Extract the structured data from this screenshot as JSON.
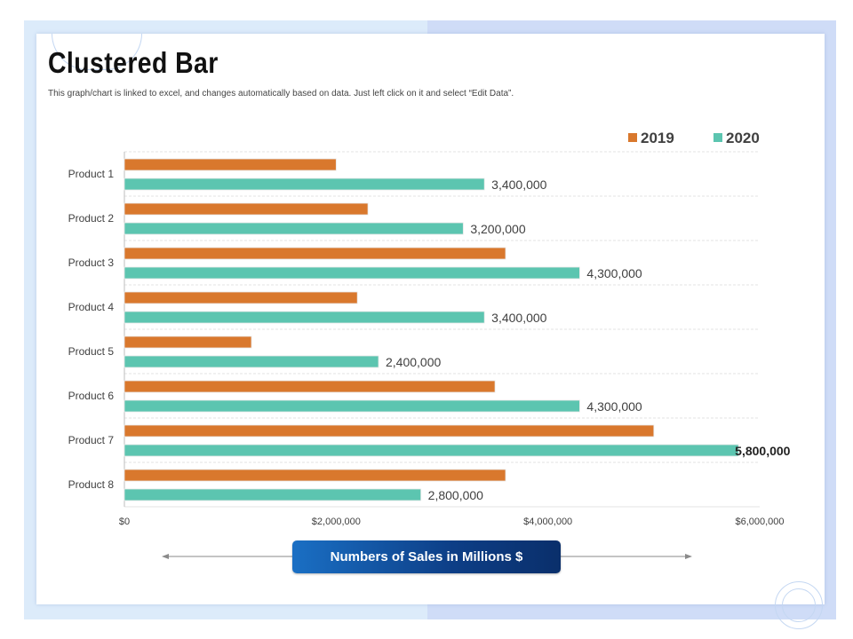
{
  "page": {
    "title": "Clustered Bar",
    "subtitle": "This graph/chart is linked to excel, and changes automatically based on data. Just left click on it and select “Edit Data”.",
    "axis_caption": "Numbers of Sales in Millions $"
  },
  "colors": {
    "s2019": "#d9782d",
    "s2020": "#5cc5b0",
    "grid": "#e3e3e3",
    "axis": "#bdbdbd",
    "text": "#404040"
  },
  "chart_data": {
    "type": "bar",
    "orientation": "horizontal",
    "categories": [
      "Product 1",
      "Product 2",
      "Product 3",
      "Product 4",
      "Product 5",
      "Product 6",
      "Product 7",
      "Product 8"
    ],
    "series": [
      {
        "name": "2019",
        "values": [
          2000000,
          2300000,
          3600000,
          2200000,
          1200000,
          3500000,
          5000000,
          3600000
        ]
      },
      {
        "name": "2020",
        "values": [
          3400000,
          3200000,
          4300000,
          3400000,
          2400000,
          4300000,
          5800000,
          2800000
        ]
      }
    ],
    "data_labels": {
      "2020": [
        "3,400,000",
        "3,200,000",
        "4,300,000",
        "3,400,000",
        "2,400,000",
        "4,300,000",
        "5,800,000",
        "2,800,000"
      ]
    },
    "xlim": [
      0,
      6000000
    ],
    "xticks": [
      0,
      2000000,
      4000000,
      6000000
    ],
    "xtick_labels": [
      "$0",
      "$2,000,000",
      "$4,000,000",
      "$6,000,000"
    ],
    "legend": [
      "2019",
      "2020"
    ],
    "legend_position": "top-right",
    "grid": true,
    "xlabel": "Numbers of Sales in Millions $",
    "title": "Clustered Bar"
  }
}
